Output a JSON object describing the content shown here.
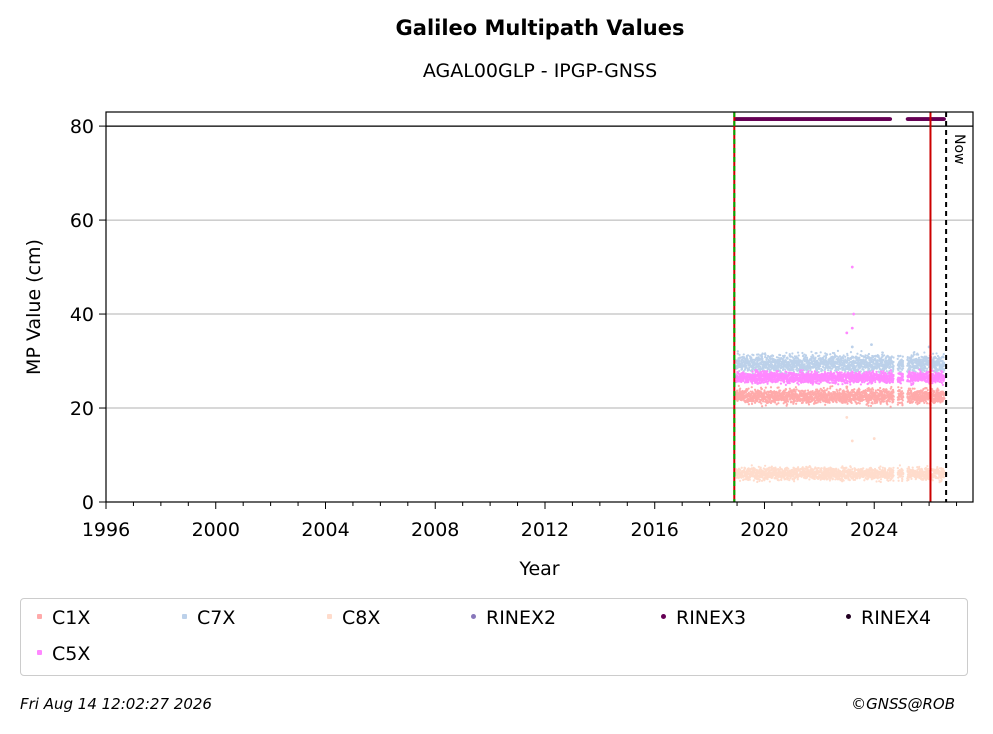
{
  "title": "Galileo Multipath Values",
  "subtitle": "AGAL00GLP - IPGP-GNSS",
  "footer": {
    "timestamp": "Fri Aug 14 12:02:27 2026",
    "copyright": "©GNSS@ROB"
  },
  "chart_data": {
    "type": "scatter",
    "xlabel": "Year",
    "ylabel": "MP Value (cm)",
    "xlim": [
      1996,
      2027.6
    ],
    "ylim": [
      0,
      83
    ],
    "xticks": [
      1996,
      2000,
      2004,
      2008,
      2012,
      2016,
      2020,
      2024
    ],
    "yticks": [
      0,
      20,
      40,
      60,
      80
    ],
    "grid": "y",
    "reference_line_y": 80,
    "vertical_lines": [
      {
        "x": 2018.9,
        "color": "#cc0000",
        "style": "solid"
      },
      {
        "x": 2018.9,
        "color": "#00aa00",
        "style": "dashed"
      },
      {
        "x": 2026.05,
        "color": "#cc0000",
        "style": "solid"
      },
      {
        "x": 2026.62,
        "color": "#000000",
        "style": "dashed",
        "label": "Now"
      }
    ],
    "series": [
      {
        "name": "C1X",
        "color": "#ffaaaa",
        "marker": "cross",
        "x_range": [
          2018.95,
          2026.55
        ],
        "mean": 22.5,
        "spread": 1.2,
        "gap": [
          2024.7,
          2025.2
        ],
        "points": [
          {
            "x": 2023.0,
            "y": 24.5
          },
          {
            "x": 2026.1,
            "y": 24.0
          }
        ]
      },
      {
        "name": "C7X",
        "color": "#bcd1ea",
        "marker": "cross",
        "x_range": [
          2018.95,
          2026.55
        ],
        "mean": 29.5,
        "spread": 1.5,
        "gap": [
          2024.7,
          2025.2
        ],
        "points": [
          {
            "x": 2023.2,
            "y": 33.0
          },
          {
            "x": 2023.9,
            "y": 33.5
          },
          {
            "x": 2026.0,
            "y": 33.0
          }
        ]
      },
      {
        "name": "C8X",
        "color": "#ffdccc",
        "marker": "cross",
        "x_range": [
          2018.95,
          2026.55
        ],
        "mean": 6.0,
        "spread": 1.0,
        "gap": [
          2024.7,
          2025.2
        ],
        "points": [
          {
            "x": 2023.2,
            "y": 13.0
          },
          {
            "x": 2024.0,
            "y": 13.5
          },
          {
            "x": 2023.0,
            "y": 18.0
          }
        ]
      },
      {
        "name": "C5X",
        "color": "#ff88ff",
        "marker": "cross",
        "x_range": [
          2018.95,
          2026.55
        ],
        "mean": 26.5,
        "spread": 0.9,
        "gap": [
          2024.7,
          2025.2
        ],
        "points": [
          {
            "x": 2023.2,
            "y": 50.0
          },
          {
            "x": 2023.25,
            "y": 40.0
          },
          {
            "x": 2023.2,
            "y": 37.0
          },
          {
            "x": 2023.0,
            "y": 36.0
          }
        ]
      },
      {
        "name": "RINEX2",
        "color": "#8877bb",
        "marker": "dot",
        "x_range": [],
        "mean": null
      },
      {
        "name": "RINEX3",
        "color": "#660055",
        "marker": "dot",
        "x_range": [
          2018.95,
          2026.55
        ],
        "mean": 81.5,
        "spread": 0,
        "gap": [
          2024.6,
          2025.2
        ]
      },
      {
        "name": "RINEX4",
        "color": "#220022",
        "marker": "dot",
        "x_range": [],
        "mean": null
      }
    ]
  }
}
